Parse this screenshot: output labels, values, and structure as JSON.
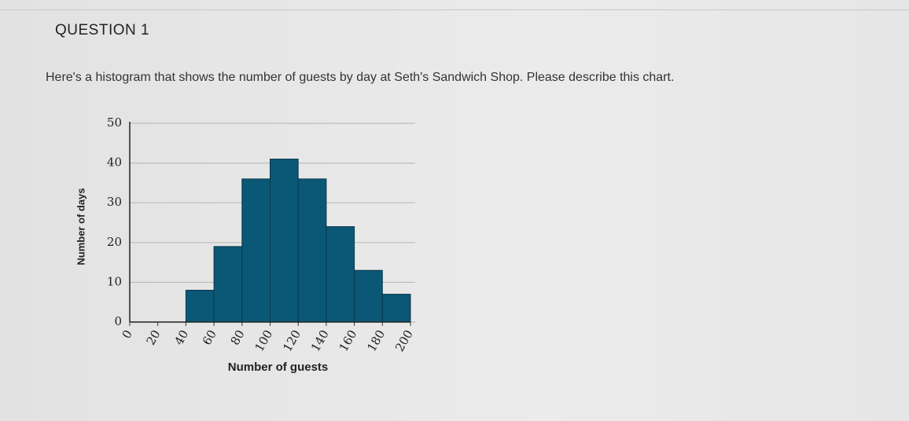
{
  "question": {
    "title": "QUESTION 1",
    "prompt": "Here's a histogram that shows the number of guests by day at Seth's Sandwich Shop. Please describe this chart."
  },
  "chart_data": {
    "type": "histogram",
    "x_label": "Number of guests",
    "y_label": "Number of days",
    "bins": [
      0,
      20,
      40,
      60,
      80,
      100,
      120,
      140,
      160,
      180,
      200
    ],
    "counts": [
      0,
      0,
      8,
      19,
      36,
      41,
      36,
      24,
      13,
      7
    ],
    "color": "#0b5876",
    "xlim": [
      0,
      200
    ],
    "xticks": [
      0,
      20,
      40,
      60,
      80,
      100,
      120,
      140,
      160,
      180,
      200
    ],
    "ylim": [
      0,
      50
    ],
    "yticks": [
      0,
      10,
      20,
      30,
      40,
      50
    ],
    "grid": true
  }
}
